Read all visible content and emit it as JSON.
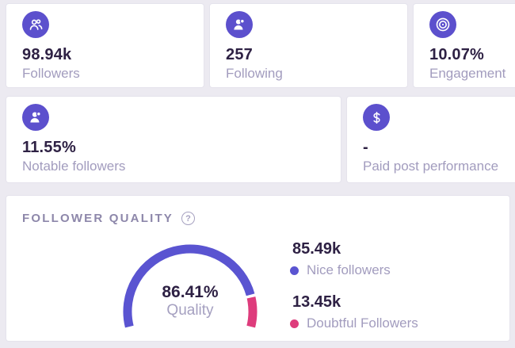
{
  "colors": {
    "page_background": "#eceaf1",
    "card_background": "#ffffff",
    "icon_circle": "#5c50cd",
    "value_text": "#2e2144",
    "label_text": "#a29cbe",
    "header_text": "#8d87aa",
    "gauge_nice": "#5a54d1",
    "gauge_doubtful": "#de3c7c"
  },
  "stat_cards": [
    {
      "icon": "users-icon",
      "value": "98.94k",
      "label": "Followers"
    },
    {
      "icon": "user-badge-icon",
      "value": "257",
      "label": "Following"
    },
    {
      "icon": "target-icon",
      "value": "10.07%",
      "label": "Engagement"
    },
    {
      "icon": "user-star-icon",
      "value": "11.55%",
      "label": "Notable followers"
    },
    {
      "icon": "dollar-icon",
      "value": "-",
      "label": "Paid post performance"
    }
  ],
  "follower_quality": {
    "title": "FOLLOWER QUALITY",
    "help_icon": "?",
    "gauge": {
      "percent": 86.41,
      "percent_label": "86.41%",
      "caption": "Quality"
    },
    "legend": [
      {
        "value": "85.49k",
        "label": "Nice followers",
        "color": "#5a54d1"
      },
      {
        "value": "13.45k",
        "label": "Doubtful Followers",
        "color": "#de3c7c"
      }
    ]
  },
  "chart_data": {
    "type": "pie",
    "variant": "half-gauge",
    "title": "Follower Quality",
    "center_label": "86.41%",
    "center_caption": "Quality",
    "gauge_percent": 86.41,
    "arc_degrees": 208,
    "slices": [
      {
        "label": "Nice followers",
        "display": "85.49k",
        "value": 85490,
        "color": "#5a54d1"
      },
      {
        "label": "Doubtful Followers",
        "display": "13.45k",
        "value": 13450,
        "color": "#de3c7c"
      }
    ],
    "legend_position": "right"
  }
}
